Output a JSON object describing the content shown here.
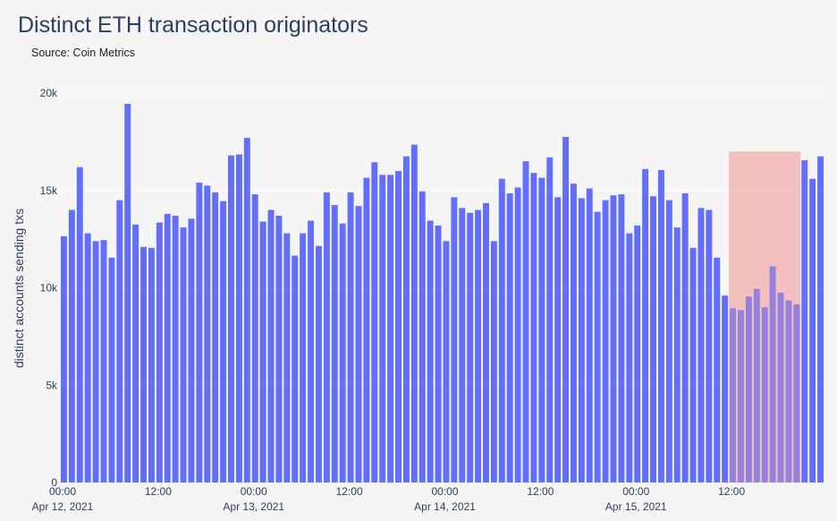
{
  "chart_data": {
    "type": "bar",
    "title": "Distinct ETH transaction originators",
    "subtitle": "Source: Coin Metrics",
    "ylabel": "distinct accounts sending txs",
    "xlabel": "",
    "ylim": [
      0,
      20000
    ],
    "grid": true,
    "y_ticks": [
      {
        "value": 0,
        "label": "0"
      },
      {
        "value": 5000,
        "label": "5k"
      },
      {
        "value": 10000,
        "label": "10k"
      },
      {
        "value": 15000,
        "label": "15k"
      },
      {
        "value": 20000,
        "label": "20k"
      }
    ],
    "x_start": "2021-04-12 00:00",
    "x_interval_hours": 1,
    "x_ticks": [
      {
        "hour": 0,
        "time": "00:00",
        "date": "Apr 12, 2021"
      },
      {
        "hour": 12,
        "time": "12:00",
        "date": ""
      },
      {
        "hour": 24,
        "time": "00:00",
        "date": "Apr 13, 2021"
      },
      {
        "hour": 36,
        "time": "12:00",
        "date": ""
      },
      {
        "hour": 48,
        "time": "00:00",
        "date": "Apr 14, 2021"
      },
      {
        "hour": 60,
        "time": "12:00",
        "date": ""
      },
      {
        "hour": 72,
        "time": "00:00",
        "date": "Apr 15, 2021"
      },
      {
        "hour": 84,
        "time": "12:00",
        "date": ""
      }
    ],
    "bar_color": "#636efa",
    "highlight": {
      "from": "2021-04-15 11:30",
      "to": "2021-04-15 20:30",
      "color": "#f4a6a6"
    },
    "values": [
      12650,
      14000,
      16200,
      12800,
      12400,
      12450,
      11550,
      14500,
      19450,
      13250,
      12100,
      12050,
      13350,
      13800,
      13700,
      13100,
      13550,
      15400,
      15250,
      14900,
      14450,
      16800,
      16850,
      17700,
      14800,
      13400,
      14000,
      13700,
      12800,
      11650,
      12800,
      13450,
      12150,
      14900,
      14250,
      13300,
      14900,
      14200,
      15650,
      16450,
      15800,
      15800,
      16000,
      16750,
      17350,
      14950,
      13450,
      13200,
      12400,
      14650,
      14100,
      13850,
      14000,
      14350,
      12400,
      15600,
      14850,
      15150,
      16500,
      15900,
      15650,
      16700,
      14650,
      17750,
      15350,
      14600,
      15100,
      13900,
      14500,
      14750,
      14800,
      12800,
      13200,
      16100,
      14700,
      16050,
      14500,
      13100,
      14850,
      12050,
      14100,
      14000,
      11550,
      9600,
      8950,
      8850,
      9550,
      9950,
      9000,
      11100,
      9750,
      9350,
      9150,
      16550,
      15600,
      16750
    ]
  }
}
